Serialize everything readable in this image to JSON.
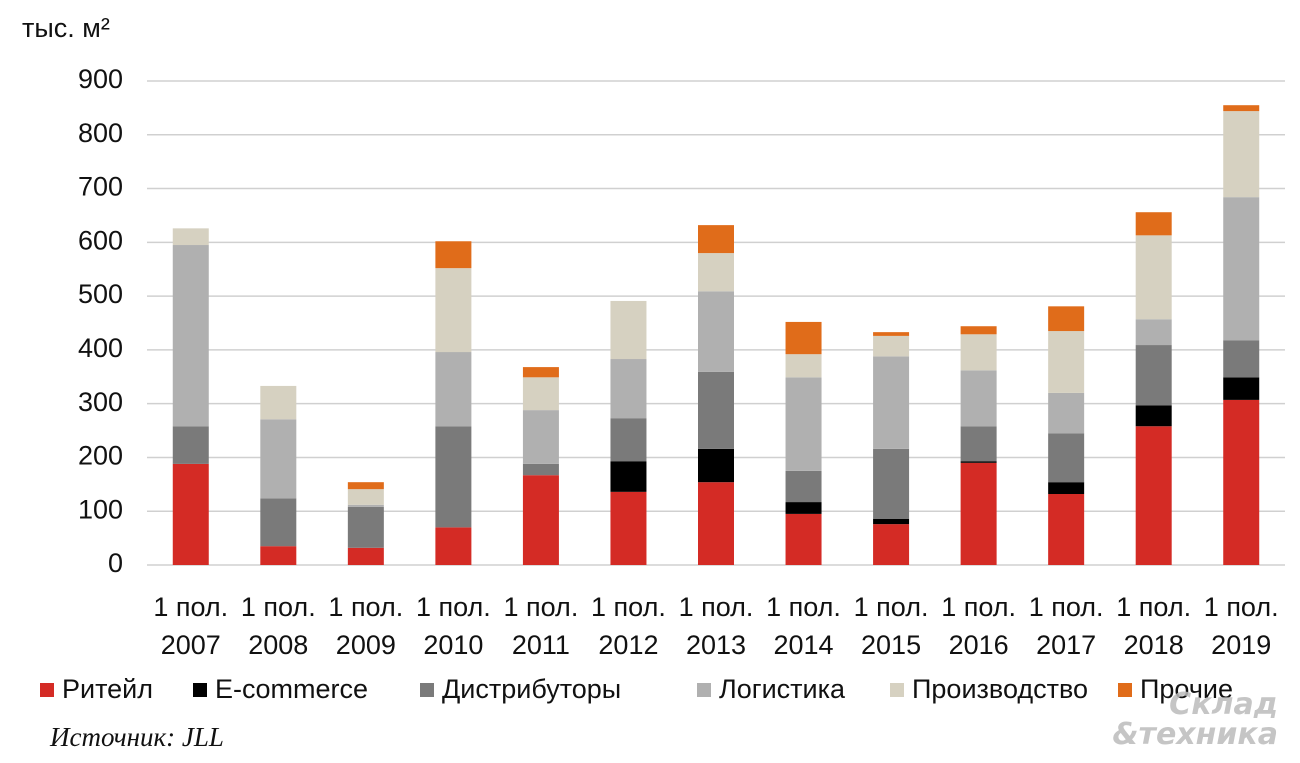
{
  "chart_data": {
    "type": "stacked_bar",
    "y_label": "тыс. м²",
    "source": "Источник: JLL",
    "watermark": [
      "Склад",
      "&техника"
    ],
    "categories": [
      "1 пол.\n2007",
      "1 пол.\n2008",
      "1 пол.\n2009",
      "1 пол.\n2010",
      "1 пол.\n2011",
      "1 пол.\n2012",
      "1 пол.\n2013",
      "1 пол.\n2014",
      "1 пол.\n2015",
      "1 пол.\n2016",
      "1 пол.\n2017",
      "1 пол.\n2018",
      "1 пол.\n2019"
    ],
    "series": [
      {
        "name": "Ритейл",
        "color": "#d42b25",
        "values": [
          188,
          35,
          32,
          70,
          167,
          136,
          154,
          95,
          76,
          190,
          132,
          258,
          307
        ]
      },
      {
        "name": "E-commerce",
        "color": "#000000",
        "values": [
          0,
          0,
          0,
          0,
          0,
          57,
          62,
          22,
          10,
          3,
          22,
          39,
          42
        ]
      },
      {
        "name": "Дистрибуторы",
        "color": "#7a7a7a",
        "values": [
          70,
          89,
          76,
          188,
          21,
          80,
          143,
          58,
          130,
          65,
          91,
          112,
          69
        ]
      },
      {
        "name": "Логистика",
        "color": "#b0b0b0",
        "values": [
          337,
          147,
          4,
          138,
          100,
          110,
          150,
          174,
          172,
          104,
          75,
          48,
          266
        ]
      },
      {
        "name": "Производство",
        "color": "#d6d1c1",
        "values": [
          31,
          62,
          29,
          156,
          61,
          108,
          71,
          43,
          38,
          67,
          115,
          156,
          160
        ]
      },
      {
        "name": "Прочие",
        "color": "#e06c1a",
        "values": [
          0,
          0,
          13,
          50,
          19,
          0,
          52,
          60,
          7,
          15,
          46,
          43,
          11
        ]
      }
    ],
    "ylim": [
      0,
      900
    ],
    "yticks": [
      0,
      100,
      200,
      300,
      400,
      500,
      600,
      700,
      800,
      900
    ],
    "grid": true
  }
}
